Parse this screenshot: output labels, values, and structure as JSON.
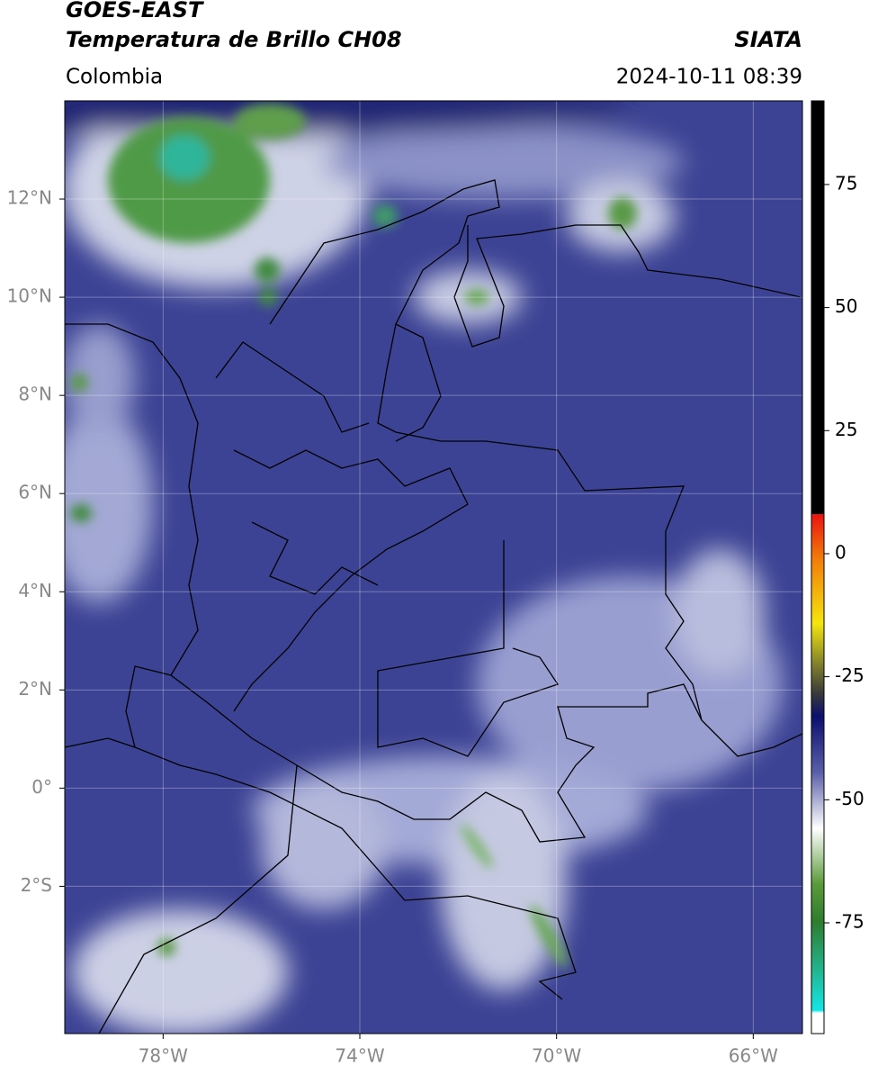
{
  "header": {
    "title": "GOES-EAST",
    "subtitle": "Temperatura de Brillo CH08",
    "region": "Colombia",
    "source": "SIATA",
    "datetime": "2024-10-11 08:39"
  },
  "map": {
    "xlim": [
      -80,
      -65
    ],
    "ylim": [
      -5,
      14
    ],
    "grid": true,
    "xticks": [
      {
        "value": -78,
        "label": "78°W"
      },
      {
        "value": -74,
        "label": "74°W"
      },
      {
        "value": -70,
        "label": "70°W"
      },
      {
        "value": -66,
        "label": "66°W"
      }
    ],
    "yticks": [
      {
        "value": 12,
        "label": "12°N"
      },
      {
        "value": 10,
        "label": "10°N"
      },
      {
        "value": 8,
        "label": "8°N"
      },
      {
        "value": 6,
        "label": "6°N"
      },
      {
        "value": 4,
        "label": "4°N"
      },
      {
        "value": 2,
        "label": "2°N"
      },
      {
        "value": 0,
        "label": "0°"
      },
      {
        "value": -2,
        "label": "2°S"
      }
    ]
  },
  "colorbar": {
    "lim": [
      -97.5,
      92
    ],
    "ticks": [
      75,
      50,
      25,
      0,
      -25,
      -50,
      -75
    ]
  }
}
